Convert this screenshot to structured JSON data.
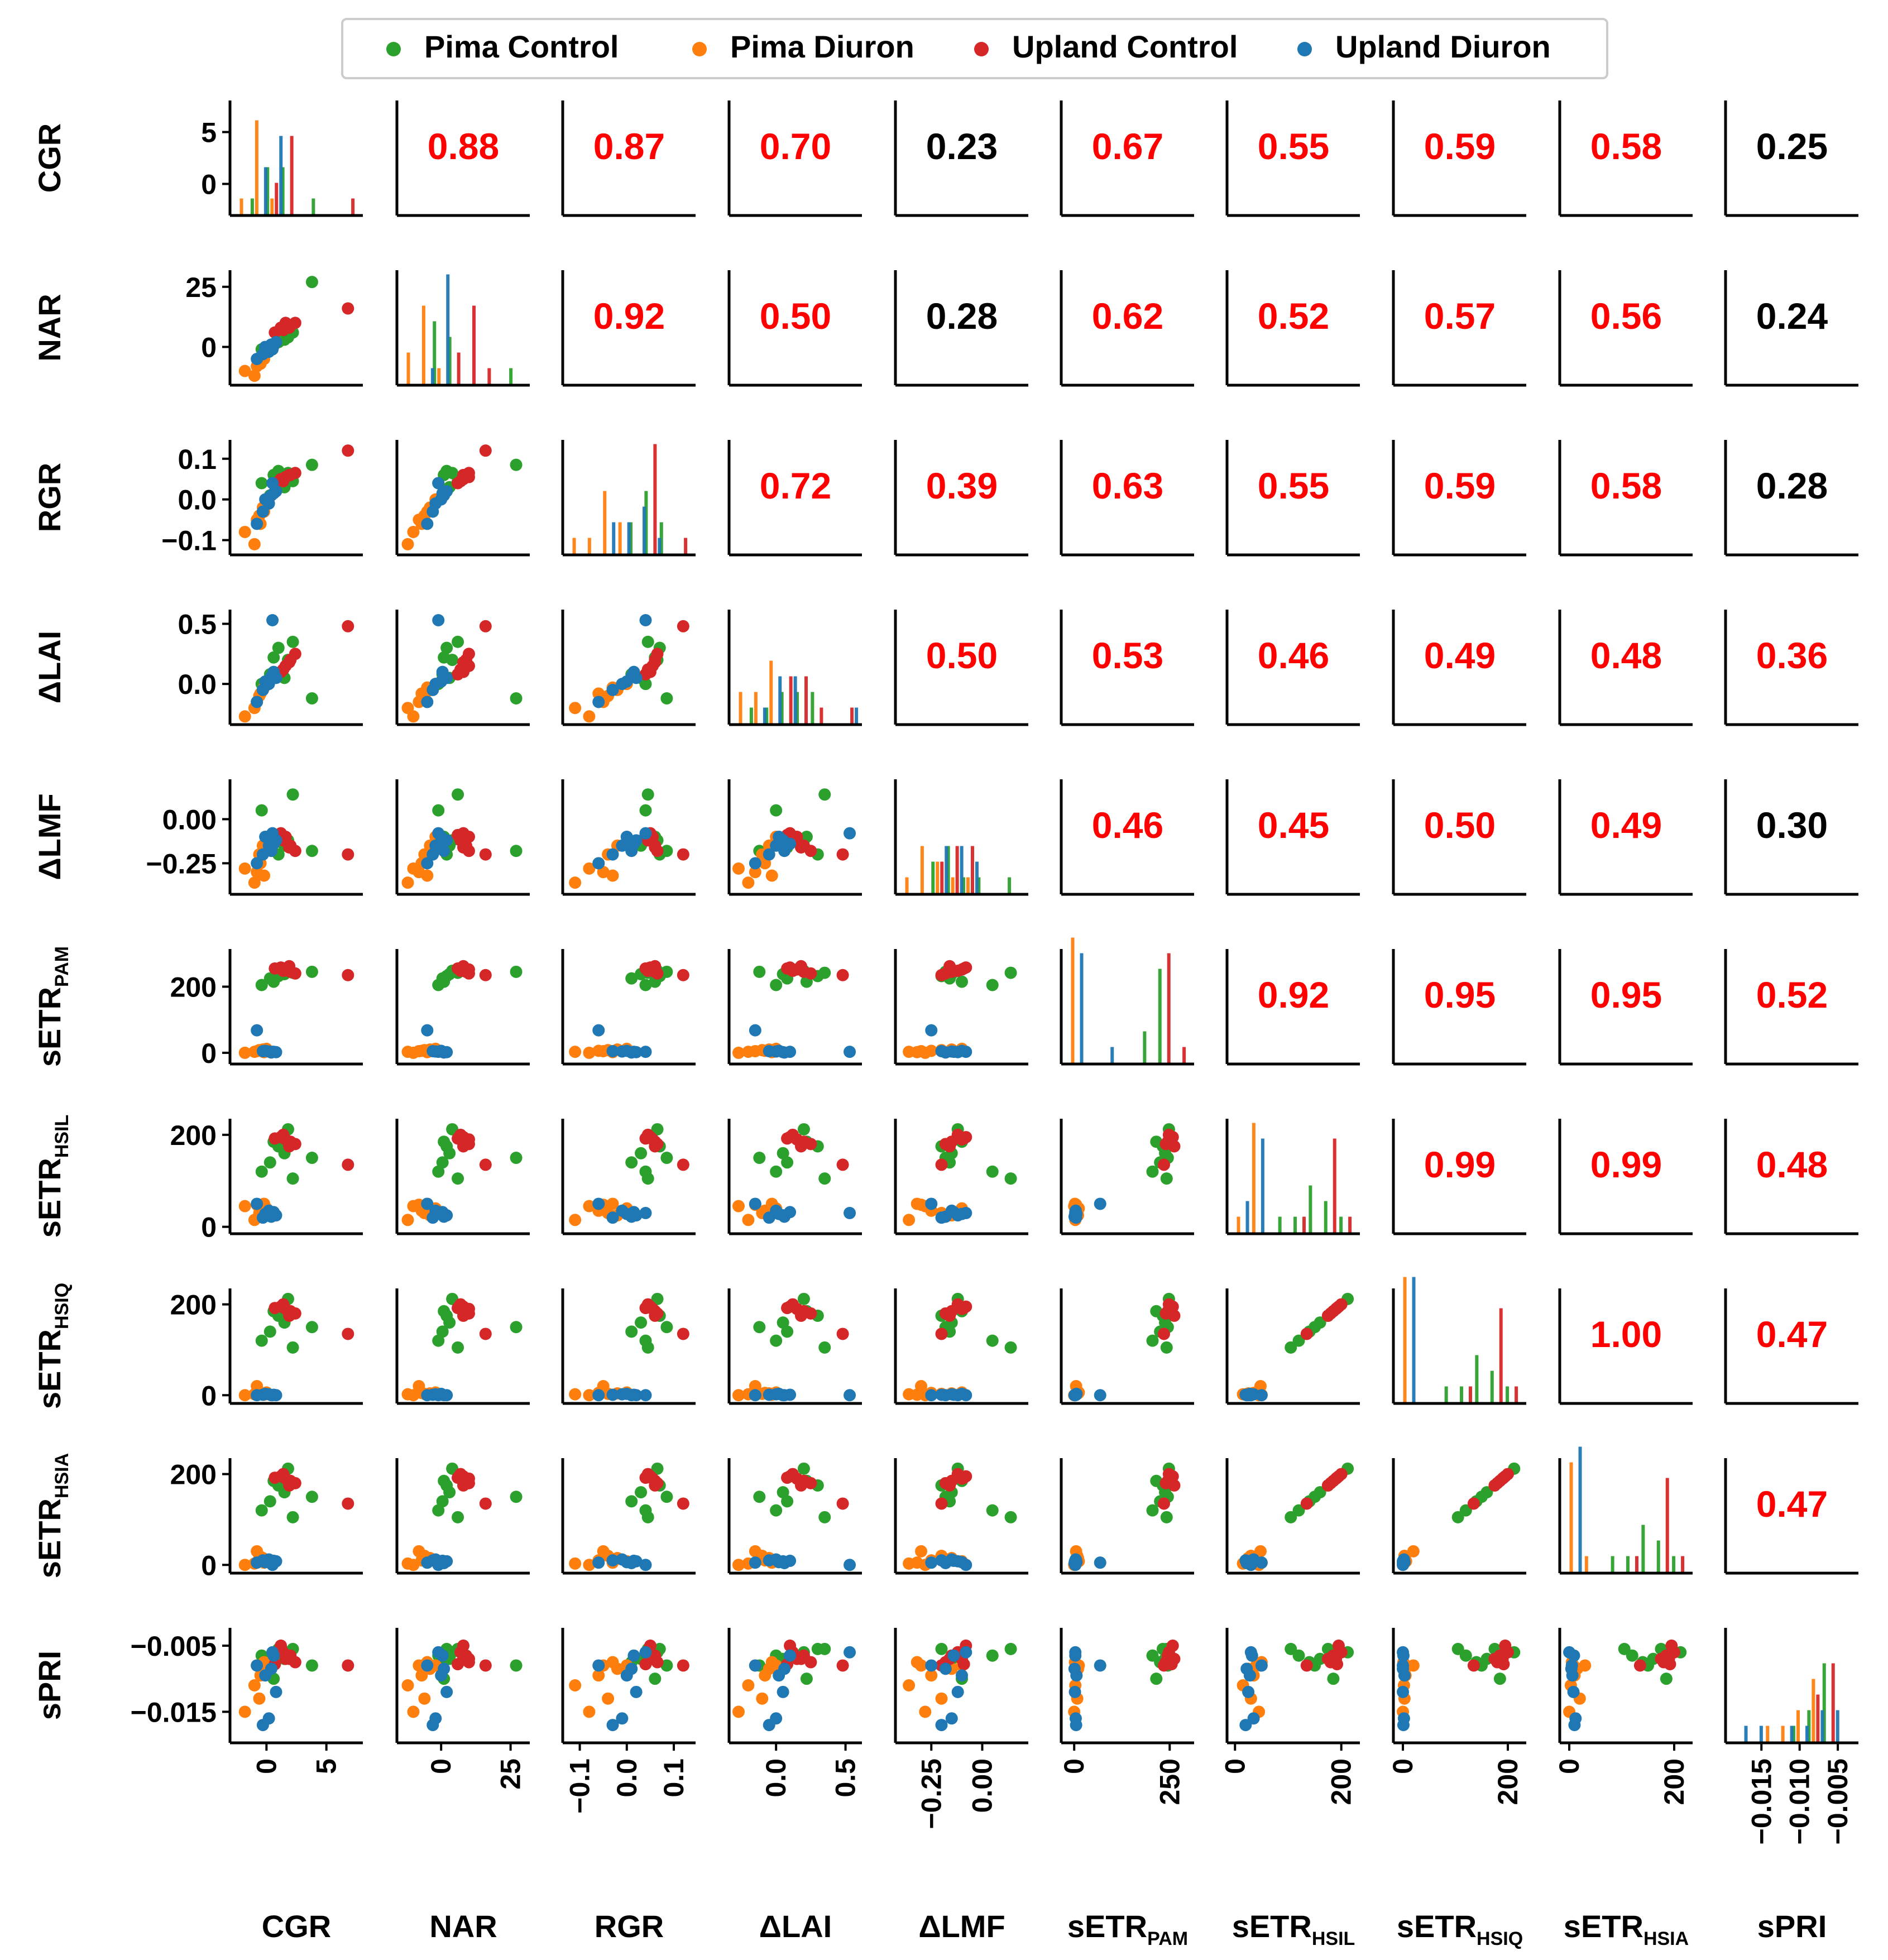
{
  "chart_data": {
    "type": "scatter",
    "title": "",
    "grid": false,
    "legend_position": "top-center",
    "variables": [
      {
        "id": "CGR",
        "label": "CGR",
        "sub": ""
      },
      {
        "id": "NAR",
        "label": "NAR",
        "sub": ""
      },
      {
        "id": "RGR",
        "label": "RGR",
        "sub": ""
      },
      {
        "id": "dLAI",
        "label": "ΔLAI",
        "sub": ""
      },
      {
        "id": "dLMF",
        "label": "ΔLMF",
        "sub": ""
      },
      {
        "id": "sETRPAM",
        "label": "sETR",
        "sub": "PAM"
      },
      {
        "id": "sETRHSIL",
        "label": "sETR",
        "sub": "HSIL"
      },
      {
        "id": "sETRHSIQ",
        "label": "sETR",
        "sub": "HSIQ"
      },
      {
        "id": "sETRHSIA",
        "label": "sETR",
        "sub": "HSIA"
      },
      {
        "id": "sPRI",
        "label": "sPRI",
        "sub": ""
      }
    ],
    "ranges": [
      [
        -2.6,
        7.6
      ],
      [
        -14,
        30
      ],
      [
        -0.125,
        0.135
      ],
      [
        -0.3,
        0.58
      ],
      [
        -0.4,
        0.2
      ],
      [
        -20,
        300
      ],
      [
        -5,
        225
      ],
      [
        -8,
        225
      ],
      [
        -8,
        225
      ],
      [
        -0.019,
        -0.003
      ]
    ],
    "ticks": [
      {
        "values": [
          0,
          5
        ],
        "labels": [
          "0",
          "5"
        ]
      },
      {
        "values": [
          0,
          25
        ],
        "labels": [
          "0",
          "25"
        ]
      },
      {
        "values": [
          -0.1,
          0.0,
          0.1
        ],
        "labels": [
          "−0.1",
          "0.0",
          "0.1"
        ]
      },
      {
        "values": [
          0.0,
          0.5
        ],
        "labels": [
          "0.0",
          "0.5"
        ]
      },
      {
        "values": [
          -0.25,
          0.0
        ],
        "labels": [
          "−0.25",
          "0.00"
        ]
      },
      {
        "values": [
          0,
          200
        ],
        "labels": [
          "0",
          "200"
        ]
      },
      {
        "values": [
          0,
          200
        ],
        "labels": [
          "0",
          "200"
        ]
      },
      {
        "values": [
          0,
          200
        ],
        "labels": [
          "0",
          "200"
        ]
      },
      {
        "values": [
          0,
          200
        ],
        "labels": [
          "0",
          "200"
        ]
      },
      {
        "values": [
          -0.015,
          -0.005
        ],
        "labels": [
          "−0.015",
          "−0.005"
        ]
      }
    ],
    "x_ticks": [
      {
        "values": [
          0,
          5
        ],
        "labels": [
          "0",
          "5"
        ]
      },
      {
        "values": [
          0,
          25
        ],
        "labels": [
          "0",
          "25"
        ]
      },
      {
        "values": [
          -0.1,
          0.0,
          0.1
        ],
        "labels": [
          "−0.1",
          "0.0",
          "0.1"
        ]
      },
      {
        "values": [
          0.0,
          0.5
        ],
        "labels": [
          "0.0",
          "0.5"
        ]
      },
      {
        "values": [
          -0.25,
          0.0
        ],
        "labels": [
          "−0.25",
          "0.00"
        ]
      },
      {
        "values": [
          0,
          250
        ],
        "labels": [
          "0",
          "250"
        ]
      },
      {
        "values": [
          0,
          200
        ],
        "labels": [
          "0",
          "200"
        ]
      },
      {
        "values": [
          0,
          200
        ],
        "labels": [
          "0",
          "200"
        ]
      },
      {
        "values": [
          0,
          200
        ],
        "labels": [
          "0",
          "200"
        ]
      },
      {
        "values": [
          -0.015,
          -0.01,
          -0.005
        ],
        "labels": [
          "−0.015",
          "−0.010",
          "−0.005"
        ]
      }
    ],
    "correlations": {
      "1,0": "0.88",
      "2,0": "0.87",
      "3,0": "0.70",
      "4,0": "0.23",
      "5,0": "0.67",
      "6,0": "0.55",
      "7,0": "0.59",
      "8,0": "0.58",
      "9,0": "0.25",
      "2,1": "0.92",
      "3,1": "0.50",
      "4,1": "0.28",
      "5,1": "0.62",
      "6,1": "0.52",
      "7,1": "0.57",
      "8,1": "0.56",
      "9,1": "0.24",
      "3,2": "0.72",
      "4,2": "0.39",
      "5,2": "0.63",
      "6,2": "0.55",
      "7,2": "0.59",
      "8,2": "0.58",
      "9,2": "0.28",
      "4,3": "0.50",
      "5,3": "0.53",
      "6,3": "0.46",
      "7,3": "0.49",
      "8,3": "0.48",
      "9,3": "0.36",
      "5,4": "0.46",
      "6,4": "0.45",
      "7,4": "0.50",
      "8,4": "0.49",
      "9,4": "0.30",
      "6,5": "0.92",
      "7,5": "0.95",
      "8,5": "0.95",
      "9,5": "0.52",
      "7,6": "0.99",
      "8,6": "0.99",
      "9,6": "0.48",
      "8,7": "1.00",
      "9,7": "0.47",
      "9,8": "0.47"
    },
    "significant_color": "#ff0000",
    "nonsignificant_color": "#000000",
    "non_significant_cells": [
      "4,0",
      "9,0",
      "4,1",
      "9,1",
      "9,2",
      "9,4"
    ],
    "series": [
      {
        "name": "Pima Control",
        "color": "#2ca02c",
        "points": [
          [
            3.8,
            27.0,
            0.085,
            -0.12,
            -0.18,
            245,
            150,
            150,
            150,
            -0.008
          ],
          [
            2.2,
            6.0,
            0.045,
            0.35,
            0.14,
            242,
            105,
            105,
            105,
            -0.0055
          ],
          [
            -0.4,
            -1.0,
            0.04,
            0.0,
            0.05,
            205,
            120,
            120,
            120,
            -0.0065
          ],
          [
            0.6,
            1.0,
            0.06,
            0.22,
            -0.1,
            215,
            185,
            185,
            185,
            -0.01
          ],
          [
            1.0,
            2.0,
            0.07,
            0.3,
            -0.2,
            232,
            175,
            175,
            175,
            -0.0055
          ],
          [
            1.5,
            3.0,
            0.03,
            0.05,
            -0.15,
            238,
            160,
            160,
            160,
            -0.007
          ],
          [
            1.8,
            4.0,
            0.065,
            0.2,
            -0.12,
            248,
            212,
            212,
            212,
            -0.006
          ],
          [
            0.3,
            0.5,
            0.01,
            0.08,
            -0.16,
            225,
            140,
            140,
            140,
            -0.0075
          ]
        ]
      },
      {
        "name": "Pima Diuron",
        "color": "#ff7f0e",
        "points": [
          [
            -1.8,
            -10.0,
            -0.08,
            -0.27,
            -0.28,
            0,
            45,
            0,
            0,
            -0.015
          ],
          [
            -1.0,
            -12.0,
            -0.11,
            -0.2,
            -0.36,
            3,
            15,
            2,
            3,
            -0.011
          ],
          [
            -0.8,
            -8.0,
            -0.05,
            -0.15,
            -0.3,
            5,
            48,
            20,
            30,
            -0.008
          ],
          [
            -0.5,
            -7.0,
            -0.06,
            -0.08,
            -0.25,
            6,
            35,
            5,
            10,
            -0.0095
          ],
          [
            -0.6,
            -6.0,
            -0.04,
            -0.1,
            -0.2,
            8,
            30,
            3,
            20,
            -0.013
          ],
          [
            -0.3,
            -4.0,
            -0.02,
            -0.05,
            -0.15,
            10,
            25,
            4,
            15,
            -0.0085
          ],
          [
            0.0,
            -2.0,
            0.0,
            0.0,
            -0.1,
            12,
            40,
            6,
            8,
            -0.008
          ],
          [
            -0.2,
            -5.0,
            -0.03,
            -0.03,
            -0.32,
            2,
            50,
            1,
            5,
            -0.0075
          ]
        ]
      },
      {
        "name": "Upland Control",
        "color": "#d62728",
        "points": [
          [
            6.8,
            16.0,
            0.12,
            0.48,
            -0.2,
            235,
            135,
            135,
            135,
            -0.008
          ],
          [
            1.2,
            8.0,
            0.05,
            0.1,
            -0.08,
            258,
            195,
            195,
            195,
            -0.005
          ],
          [
            1.6,
            10.0,
            0.055,
            0.15,
            -0.1,
            252,
            190,
            190,
            190,
            -0.007
          ],
          [
            2.0,
            9.0,
            0.06,
            0.2,
            -0.15,
            245,
            185,
            185,
            185,
            -0.0065
          ],
          [
            2.4,
            10.0,
            0.065,
            0.25,
            -0.18,
            240,
            180,
            180,
            180,
            -0.0075
          ],
          [
            1.4,
            7.0,
            0.045,
            0.12,
            -0.12,
            248,
            200,
            200,
            200,
            -0.006
          ],
          [
            1.9,
            8.0,
            0.06,
            0.18,
            -0.16,
            262,
            175,
            175,
            175,
            -0.007
          ],
          [
            0.7,
            6.0,
            0.04,
            0.08,
            -0.09,
            255,
            192,
            192,
            192,
            -0.0078
          ]
        ]
      },
      {
        "name": "Upland Diuron",
        "color": "#1f77b4",
        "points": [
          [
            0.5,
            -1.0,
            0.04,
            0.53,
            -0.08,
            3,
            30,
            0,
            0,
            -0.006
          ],
          [
            -0.8,
            -5.0,
            -0.06,
            -0.15,
            -0.25,
            68,
            50,
            0,
            5,
            -0.008
          ],
          [
            -0.3,
            -3.0,
            -0.03,
            -0.05,
            -0.2,
            5,
            20,
            1,
            10,
            -0.017
          ],
          [
            0.2,
            -2.0,
            -0.01,
            0.0,
            -0.15,
            4,
            35,
            2,
            12,
            -0.016
          ],
          [
            0.8,
            2.0,
            0.02,
            0.05,
            -0.12,
            2,
            25,
            0,
            8,
            -0.012
          ],
          [
            -0.1,
            0.0,
            0.0,
            0.02,
            -0.1,
            6,
            28,
            3,
            6,
            -0.0095
          ],
          [
            0.4,
            1.0,
            0.01,
            0.06,
            -0.18,
            1,
            22,
            0,
            4,
            -0.0085
          ],
          [
            0.6,
            0.5,
            0.015,
            0.1,
            -0.14,
            3,
            32,
            1,
            9,
            -0.0065
          ]
        ]
      }
    ]
  }
}
